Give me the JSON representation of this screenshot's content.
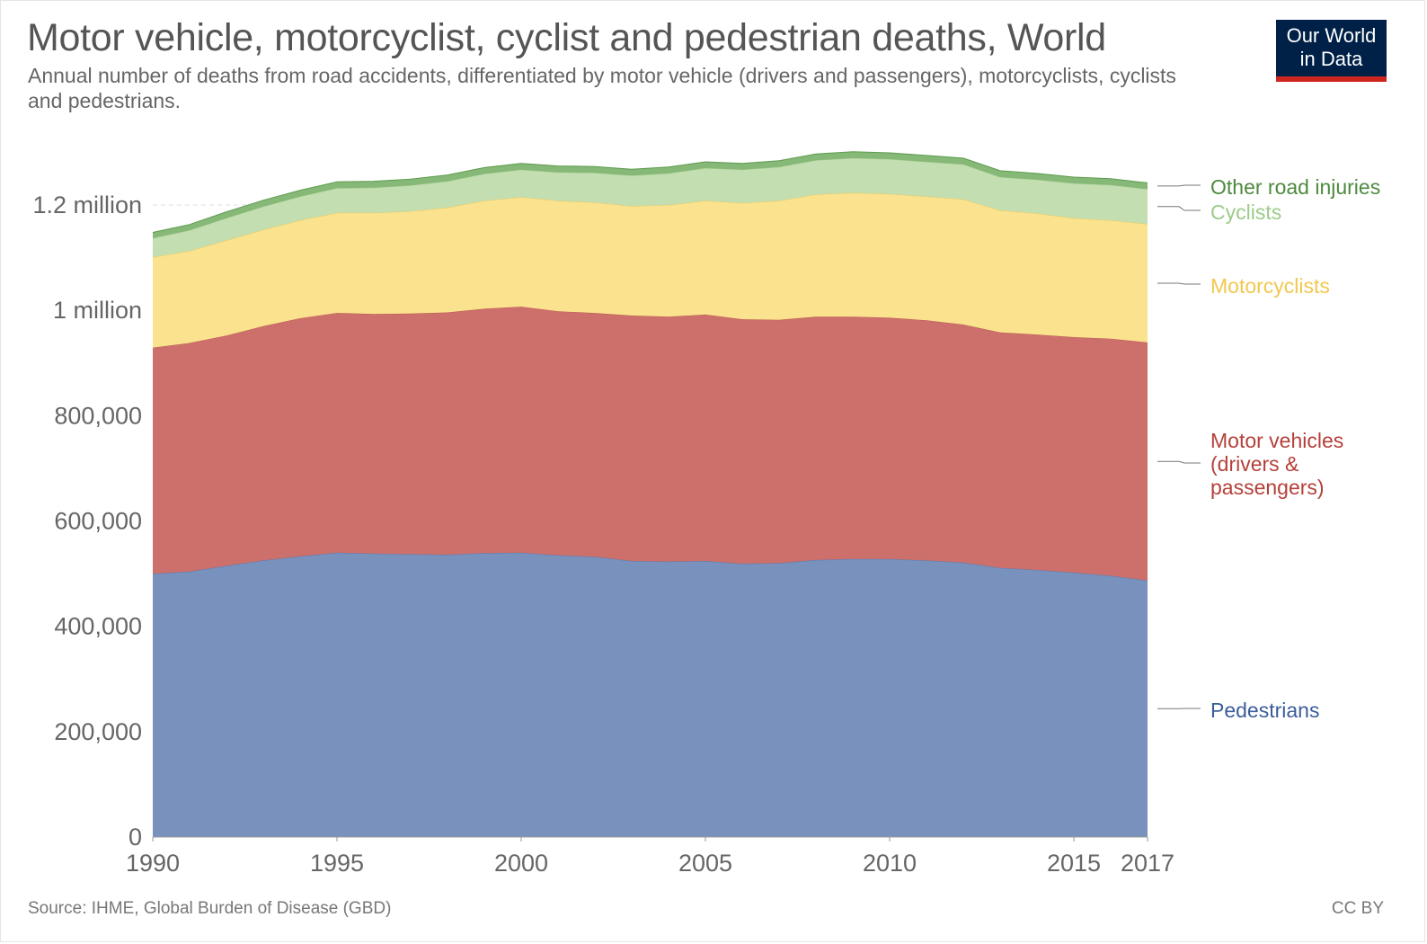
{
  "header": {
    "title": "Motor vehicle, motorcyclist, cyclist and pedestrian deaths, World",
    "subtitle": "Annual number of deaths from road accidents, differentiated by motor vehicle (drivers and passengers), motorcyclists, cyclists and pedestrians.",
    "logo_line1": "Our World",
    "logo_line2": "in Data"
  },
  "footer": {
    "source": "Source: IHME, Global Burden of Disease (GBD)",
    "license": "CC BY"
  },
  "colors": {
    "pedestrians": "#7891bd",
    "motor_vehicles": "#cd706b",
    "motorcyclists": "#fae28e",
    "cyclists": "#c3deb0",
    "other": "#86b877",
    "label_pedestrians": "#3c5d9a",
    "label_motor_vehicles": "#b5403a",
    "label_motorcyclists": "#f1c84e",
    "label_cyclists": "#9ccc8a",
    "label_other": "#4d8a3e"
  },
  "chart_data": {
    "type": "area",
    "stacked": true,
    "title": "Motor vehicle, motorcyclist, cyclist and pedestrian deaths, World",
    "xlabel": "",
    "ylabel": "",
    "xlim": [
      1990,
      2017
    ],
    "ylim": [
      0,
      1300000
    ],
    "x_ticks": [
      1990,
      1995,
      2000,
      2005,
      2010,
      2015,
      2017
    ],
    "y_ticks": [
      0,
      200000,
      400000,
      600000,
      800000,
      1000000,
      1200000
    ],
    "y_tick_labels": [
      "0",
      "200,000",
      "400,000",
      "600,000",
      "800,000",
      "1 million",
      "1.2 million"
    ],
    "grid": "horizontal dashed",
    "legend": "right, inline labels",
    "x": [
      1990,
      1991,
      1992,
      1993,
      1994,
      1995,
      1996,
      1997,
      1998,
      1999,
      2000,
      2001,
      2002,
      2003,
      2004,
      2005,
      2006,
      2007,
      2008,
      2009,
      2010,
      2011,
      2012,
      2013,
      2014,
      2015,
      2016,
      2017
    ],
    "series": [
      {
        "name": "Pedestrians",
        "values": [
          500000,
          504000,
          515000,
          525000,
          533000,
          540000,
          538000,
          537000,
          536000,
          539000,
          540000,
          535000,
          532000,
          524000,
          523000,
          524000,
          519000,
          520000,
          526000,
          528000,
          528000,
          525000,
          521000,
          511000,
          507000,
          502000,
          496000,
          487000
        ]
      },
      {
        "name": "Motor vehicles (drivers & passengers)",
        "values": [
          429000,
          434000,
          437000,
          445000,
          452000,
          455000,
          455000,
          457000,
          460000,
          464000,
          467000,
          463000,
          463000,
          466000,
          465000,
          468000,
          464000,
          462000,
          462000,
          460000,
          458000,
          456000,
          452000,
          447000,
          447000,
          447000,
          450000,
          452000
        ]
      },
      {
        "name": "Motorcyclists",
        "values": [
          172000,
          175000,
          181000,
          183000,
          186000,
          190000,
          192000,
          194000,
          199000,
          205000,
          208000,
          210000,
          210000,
          208000,
          212000,
          216000,
          221000,
          226000,
          232000,
          235000,
          235000,
          235000,
          238000,
          232000,
          230000,
          226000,
          225000,
          225000
        ]
      },
      {
        "name": "Cyclists",
        "values": [
          36000,
          39000,
          42000,
          44000,
          45000,
          47000,
          48000,
          49000,
          50000,
          51000,
          52000,
          54000,
          56000,
          58000,
          60000,
          62000,
          63000,
          64000,
          65000,
          66000,
          66000,
          66000,
          66000,
          63000,
          64000,
          66000,
          67000,
          66000
        ]
      },
      {
        "name": "Other road injuries",
        "values": [
          11000,
          11000,
          12000,
          12000,
          12000,
          12000,
          12000,
          12000,
          12000,
          12000,
          12000,
          12000,
          12000,
          12000,
          12000,
          12000,
          12000,
          12000,
          12000,
          12000,
          12000,
          12000,
          12000,
          12000,
          12000,
          12000,
          12000,
          12000
        ]
      }
    ]
  }
}
